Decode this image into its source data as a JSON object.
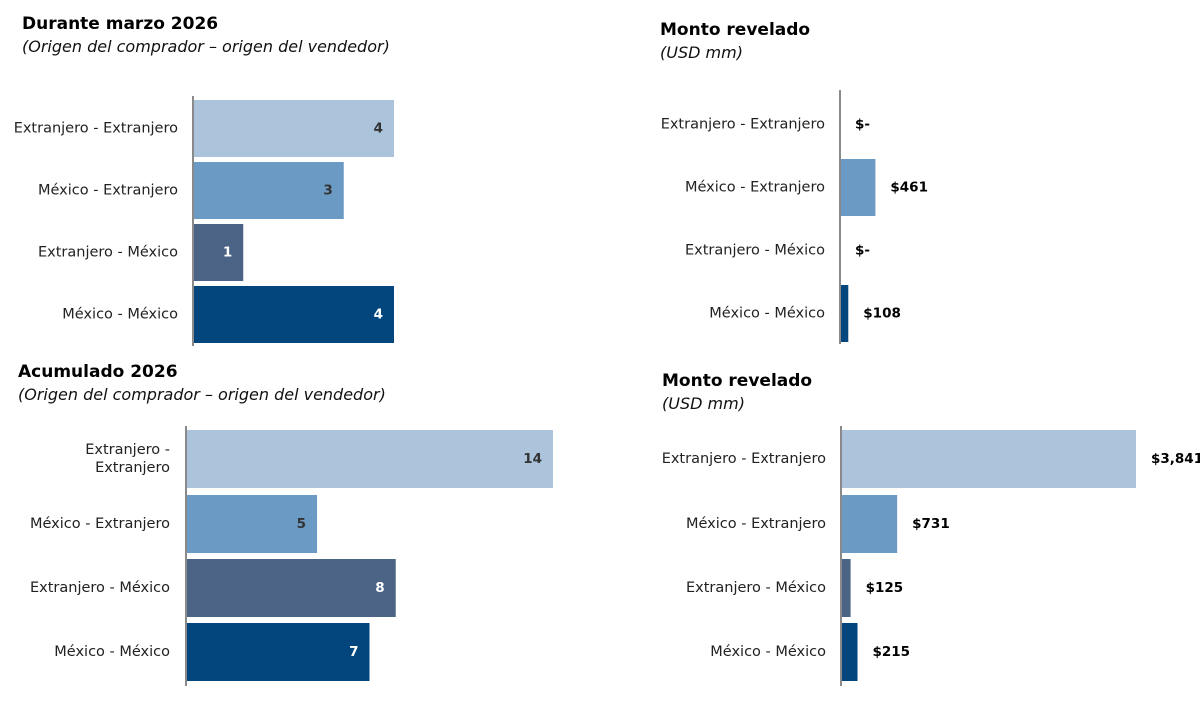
{
  "chart_data": [
    {
      "type": "bar",
      "orientation": "horizontal",
      "title": "Durante marzo 2026",
      "subtitle": "(Origen del comprador – origen del vendedor)",
      "categories": [
        "Extranjero - Extranjero",
        "México - Extranjero",
        "Extranjero - México",
        "México - México"
      ],
      "values": [
        4,
        3,
        1,
        4
      ],
      "value_labels": [
        "4",
        "3",
        "1",
        "4"
      ],
      "colors": [
        "#abc4dc",
        "#6b9ac4",
        "#4b6385",
        "#03467e"
      ],
      "label_colors": [
        "#333333",
        "#333333",
        "#ffffff",
        "#ffffff"
      ],
      "xlim": [
        0,
        4
      ]
    },
    {
      "type": "bar",
      "orientation": "horizontal",
      "title": "Monto revelado",
      "subtitle": "(USD mm)",
      "categories": [
        "Extranjero - Extranjero",
        "México - Extranjero",
        "Extranjero - México",
        "México - México"
      ],
      "values": [
        0,
        461,
        0,
        108
      ],
      "value_labels": [
        "$-",
        "$461",
        "$-",
        "$108"
      ],
      "colors": [
        "#abc4dc",
        "#6b9ac4",
        "#4b6385",
        "#03467e"
      ],
      "xlim": [
        0,
        3841
      ]
    },
    {
      "type": "bar",
      "orientation": "horizontal",
      "title": "Acumulado 2026",
      "subtitle": "(Origen del comprador – origen del vendedor)",
      "categories": [
        "Extranjero - Extranjero",
        "México - Extranjero",
        "Extranjero - México",
        "México - México"
      ],
      "category_lines": [
        [
          "Extranjero -",
          "Extranjero"
        ],
        [
          "México - Extranjero"
        ],
        [
          "Extranjero - México"
        ],
        [
          "México - México"
        ]
      ],
      "values": [
        14,
        5,
        8,
        7
      ],
      "value_labels": [
        "14",
        "5",
        "8",
        "7"
      ],
      "colors": [
        "#abc4dc",
        "#6b9ac4",
        "#4b6385",
        "#03467e"
      ],
      "label_colors": [
        "#333333",
        "#333333",
        "#ffffff",
        "#ffffff"
      ],
      "xlim": [
        0,
        14
      ]
    },
    {
      "type": "bar",
      "orientation": "horizontal",
      "title": "Monto revelado",
      "subtitle": "(USD mm)",
      "categories": [
        "Extranjero - Extranjero",
        "México - Extranjero",
        "Extranjero - México",
        "México - México"
      ],
      "values": [
        3841,
        731,
        125,
        215
      ],
      "value_labels": [
        "$3,841",
        "$731",
        "$125",
        "$215"
      ],
      "colors": [
        "#abc4dc",
        "#6b9ac4",
        "#4b6385",
        "#03467e"
      ],
      "xlim": [
        0,
        3841
      ]
    }
  ]
}
